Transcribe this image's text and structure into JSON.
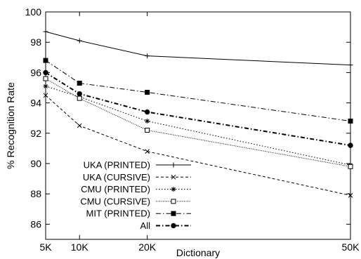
{
  "chart_data": {
    "type": "line",
    "title": "",
    "xlabel": "Dictionary",
    "ylabel": "% Recognition Rate",
    "x": [
      5000,
      10000,
      20000,
      50000
    ],
    "xlim": [
      5000,
      50000
    ],
    "ylim": [
      85,
      100
    ],
    "xticks": [
      5000,
      10000,
      20000,
      50000
    ],
    "xtick_labels": [
      "5K",
      "10K",
      "20K",
      "50K"
    ],
    "yticks": [
      86,
      88,
      90,
      92,
      94,
      96,
      98,
      100
    ],
    "ytick_labels": [
      "86",
      "88",
      "90",
      "92",
      "94",
      "96",
      "98",
      "100"
    ],
    "grid": false,
    "legend_position": "lower-left",
    "series": [
      {
        "name": "UKA (PRINTED)",
        "values": [
          98.7,
          98.1,
          97.1,
          96.5
        ],
        "marker": "plus",
        "dash": "",
        "width": 1
      },
      {
        "name": "UKA (CURSIVE)",
        "values": [
          94.5,
          92.5,
          90.8,
          87.9
        ],
        "marker": "x",
        "dash": "4,3",
        "width": 1
      },
      {
        "name": "CMU (PRINTED)",
        "values": [
          95.1,
          94.4,
          92.8,
          89.9
        ],
        "marker": "star",
        "dash": "1.5,2.5",
        "width": 1
      },
      {
        "name": "CMU (CURSIVE)",
        "values": [
          95.6,
          94.3,
          92.2,
          89.8
        ],
        "marker": "open-square",
        "dash": "1,1.5",
        "width": 1
      },
      {
        "name": "MIT (PRINTED)",
        "values": [
          96.8,
          95.3,
          94.7,
          92.8
        ],
        "marker": "filled-square",
        "dash": "7,3,1.5,3",
        "width": 1
      },
      {
        "name": "All",
        "values": [
          96.0,
          94.6,
          93.4,
          91.2
        ],
        "marker": "filled-circle",
        "dash": "6,3,1.5,3",
        "width": 2
      }
    ]
  }
}
